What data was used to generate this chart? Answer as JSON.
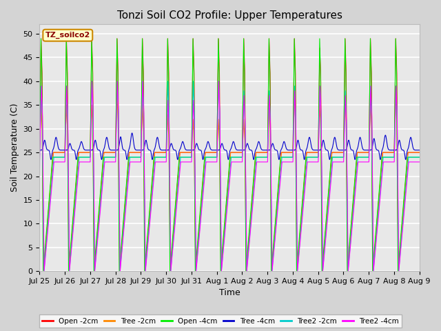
{
  "title": "Tonzi Soil CO2 Profile: Upper Temperatures",
  "xlabel": "Time",
  "ylabel": "Soil Temperature (C)",
  "ylim": [
    0,
    52
  ],
  "yticks": [
    0,
    5,
    10,
    15,
    20,
    25,
    30,
    35,
    40,
    45,
    50
  ],
  "xtick_labels": [
    "Jul 25",
    "Jul 26",
    "Jul 27",
    "Jul 28",
    "Jul 29",
    "Jul 30",
    "Jul 31",
    "Aug 1",
    "Aug 2",
    "Aug 3",
    "Aug 4",
    "Aug 5",
    "Aug 6",
    "Aug 7",
    "Aug 8",
    "Aug 9"
  ],
  "series": [
    {
      "label": "Open -2cm",
      "color": "#ff0000"
    },
    {
      "label": "Tree -2cm",
      "color": "#ff8800"
    },
    {
      "label": "Open -4cm",
      "color": "#00ee00"
    },
    {
      "label": "Tree -4cm",
      "color": "#0000cc"
    },
    {
      "label": "Tree2 -2cm",
      "color": "#00cccc"
    },
    {
      "label": "Tree2 -4cm",
      "color": "#ff00ff"
    }
  ],
  "legend_label": "TZ_soilco2",
  "legend_bg": "#ffffcc",
  "legend_border": "#cc8800",
  "bg_color": "#d4d4d4",
  "plot_bg_color": "#e8e8e8",
  "grid_color": "#ffffff",
  "title_fontsize": 11,
  "label_fontsize": 9,
  "tick_fontsize": 8
}
